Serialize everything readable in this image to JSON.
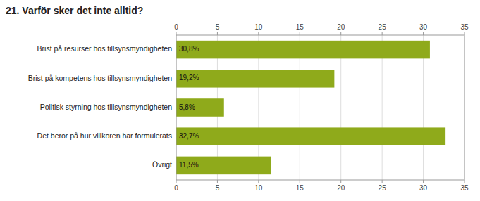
{
  "chart_data": {
    "type": "bar",
    "orientation": "horizontal",
    "title": "21. Varför sker det inte alltid?",
    "categories": [
      "Brist på resurser hos tillsynsmyndigheten",
      "Brist på kompetens hos tillsynsmyndigheten",
      "Politisk styrning hos tillsynsmyndigheten",
      "Det beror på hur villkoren har formulerats",
      "Övrigt"
    ],
    "values": [
      30.8,
      19.2,
      5.8,
      32.7,
      11.5
    ],
    "value_labels": [
      "30,8%",
      "19,2%",
      "5,8%",
      "32,7%",
      "11,5%"
    ],
    "data_labels": true,
    "color": "#8faa1b",
    "xlim": [
      0,
      35
    ],
    "xticks": [
      0,
      5,
      10,
      15,
      20,
      25,
      30,
      35
    ],
    "grid": true
  }
}
